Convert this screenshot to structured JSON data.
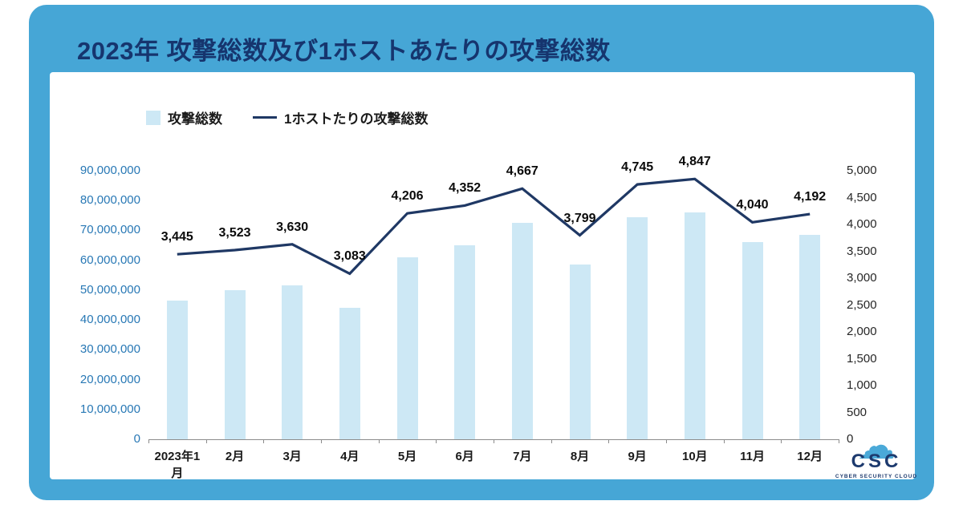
{
  "title": "2023年 攻撃総数及び1ホストあたりの攻撃総数",
  "legend": {
    "bar_label": "攻撃総数",
    "line_label": "1ホストたりの攻撃総数"
  },
  "chart_data": {
    "type": "combo_bar_line",
    "title": "2023年 攻撃総数及び1ホストあたりの攻撃総数",
    "categories": [
      "2023年1月",
      "2月",
      "3月",
      "4月",
      "5月",
      "6月",
      "7月",
      "8月",
      "9月",
      "10月",
      "11月",
      "12月"
    ],
    "series": [
      {
        "name": "攻撃総数",
        "type": "bar",
        "axis": "left",
        "values": [
          46500000,
          50000000,
          51500000,
          44000000,
          61000000,
          65000000,
          72500000,
          58500000,
          74500000,
          76000000,
          66000000,
          68500000
        ]
      },
      {
        "name": "1ホストたりの攻撃総数",
        "type": "line",
        "axis": "right",
        "values": [
          3445,
          3523,
          3630,
          3083,
          4206,
          4352,
          4667,
          3799,
          4745,
          4847,
          4040,
          4192
        ],
        "labels": [
          "3,445",
          "3,523",
          "3,630",
          "3,083",
          "4,206",
          "4,352",
          "4,667",
          "3,799",
          "4,745",
          "4,847",
          "4,040",
          "4,192"
        ]
      }
    ],
    "left_axis": {
      "min": 0,
      "max": 90000000,
      "step": 10000000,
      "labels": [
        "0",
        "10,000,000",
        "20,000,000",
        "30,000,000",
        "40,000,000",
        "50,000,000",
        "60,000,000",
        "70,000,000",
        "80,000,000",
        "90,000,000"
      ]
    },
    "right_axis": {
      "min": 0,
      "max": 5000,
      "step": 500,
      "labels": [
        "0",
        "500",
        "1,000",
        "1,500",
        "2,000",
        "2,500",
        "3,000",
        "3,500",
        "4,000",
        "4,500",
        "5,000"
      ]
    },
    "grid": false,
    "legend_position": "top-left",
    "colors": {
      "frame": "#46a6d6",
      "title_text": "#16356e",
      "bar": "#cde8f5",
      "line": "#1f3864",
      "left_axis_text": "#2878b5"
    }
  },
  "logo": {
    "name": "CSC",
    "subtext": "CYBER SECURITY CLOUD"
  }
}
